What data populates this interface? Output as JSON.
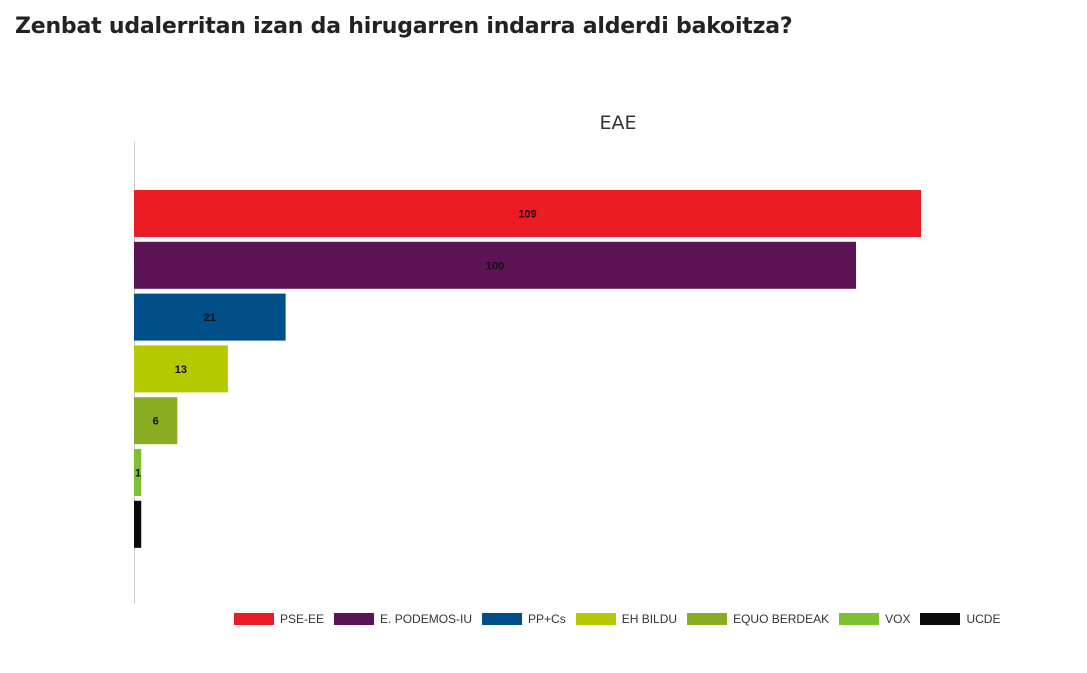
{
  "page": {
    "title": "Zenbat udalerritan izan da hirugarren indarra alderdi bakoitza?"
  },
  "chart_data": {
    "type": "bar",
    "orientation": "horizontal",
    "title": "EAE",
    "xlabel": "",
    "ylabel": "",
    "xlim": [
      0,
      120
    ],
    "grid": false,
    "legend_position": "bottom",
    "series": [
      {
        "name": "PSE-EE",
        "value": 109,
        "color": "#ec1c24"
      },
      {
        "name": "E. PODEMOS-IU",
        "value": 100,
        "color": "#5c1354"
      },
      {
        "name": "PP+Cs",
        "value": 21,
        "color": "#004f88"
      },
      {
        "name": "EH BILDU",
        "value": 13,
        "color": "#b5c900"
      },
      {
        "name": "EQUO BERDEAK",
        "value": 6,
        "color": "#8aac22"
      },
      {
        "name": "VOX",
        "value": 1,
        "color": "#7dc133"
      },
      {
        "name": "UCDE",
        "value": 1,
        "color": "#0a0a0a"
      }
    ]
  }
}
